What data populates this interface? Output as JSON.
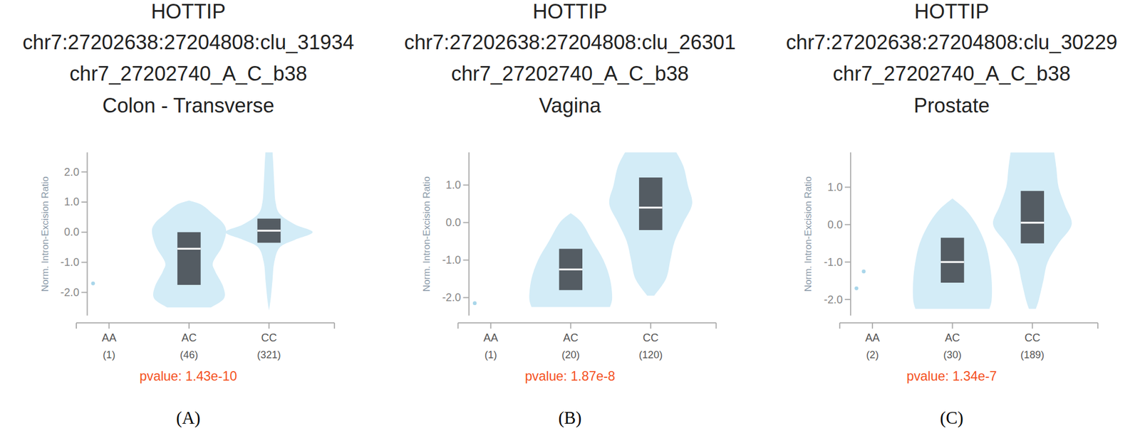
{
  "chart_data": [
    {
      "type": "violin",
      "title_lines": [
        "HOTTIP",
        "chr7:27202638:27204808:clu_31934",
        "chr7_27202740_A_C_b38",
        "Colon - Transverse"
      ],
      "y_label": "Norm. Intron-Excision Ratio",
      "categories": [
        "AA",
        "AC",
        "CC"
      ],
      "count_labels": [
        "(1)",
        "(46)",
        "(321)"
      ],
      "pvalue_label": "pvalue: 1.43e-10",
      "panel_label": "(A)",
      "color": "#d3ecf7",
      "ylim": [
        -2.77,
        2.65
      ],
      "yticks": [
        {
          "value": -2,
          "label": "-2.0"
        },
        {
          "value": -1,
          "label": "-1.0"
        },
        {
          "value": 0,
          "label": "0.0"
        },
        {
          "value": 1,
          "label": "1.0"
        },
        {
          "value": 2,
          "label": "2.0"
        }
      ],
      "groups": [
        {
          "points": [
            -1.7
          ]
        },
        {
          "violin_y": [
            -2.5,
            -2.2,
            -1.8,
            -1.3,
            -1.0,
            -0.5,
            0,
            0.3,
            0.6,
            0.9,
            1.05
          ],
          "violin_density": [
            0.5,
            0.8,
            0.78,
            0.6,
            0.55,
            0.75,
            0.85,
            0.78,
            0.55,
            0.3,
            0
          ],
          "q1": -1.75,
          "median": -0.55,
          "q3": 0.0
        },
        {
          "violin_y": [
            -2.6,
            -2.2,
            -1.6,
            -1.0,
            -0.5,
            -0.25,
            0,
            0.25,
            0.6,
            1.0,
            1.6,
            2.2,
            2.7
          ],
          "violin_density": [
            0,
            0.04,
            0.08,
            0.12,
            0.25,
            0.6,
            1.0,
            0.6,
            0.25,
            0.15,
            0.12,
            0.1,
            0.08
          ],
          "q1": -0.35,
          "median": 0.05,
          "q3": 0.45
        }
      ]
    },
    {
      "type": "violin",
      "title_lines": [
        "HOTTIP",
        "chr7:27202638:27204808:clu_26301",
        "chr7_27202740_A_C_b38",
        "Vagina"
      ],
      "y_label": "Norm. Intron-Excision Ratio",
      "categories": [
        "AA",
        "AC",
        "CC"
      ],
      "count_labels": [
        "(1)",
        "(20)",
        "(120)"
      ],
      "pvalue_label": "pvalue: 1.87e-8",
      "panel_label": "(B)",
      "color": "#d3ecf7",
      "ylim": [
        -2.48,
        1.87
      ],
      "yticks": [
        {
          "value": -2,
          "label": "-2.0"
        },
        {
          "value": -1,
          "label": "-1.0"
        },
        {
          "value": 0,
          "label": "0.0"
        },
        {
          "value": 1,
          "label": "1.0"
        }
      ],
      "groups": [
        {
          "points": [
            -2.15
          ]
        },
        {
          "violin_y": [
            -2.25,
            -2.0,
            -1.5,
            -1.0,
            -0.5,
            0,
            0.25
          ],
          "violin_density": [
            0.9,
            0.95,
            0.9,
            0.75,
            0.5,
            0.25,
            0
          ],
          "q1": -1.8,
          "median": -1.25,
          "q3": -0.7
        },
        {
          "violin_y": [
            -1.95,
            -1.5,
            -1.0,
            -0.5,
            0,
            0.5,
            1.0,
            1.5,
            1.95
          ],
          "violin_density": [
            0.08,
            0.35,
            0.45,
            0.55,
            0.75,
            0.95,
            0.85,
            0.75,
            0.55
          ],
          "q1": -0.2,
          "median": 0.4,
          "q3": 1.2
        }
      ]
    },
    {
      "type": "violin",
      "title_lines": [
        "HOTTIP",
        "chr7:27202638:27204808:clu_30229",
        "chr7_27202740_A_C_b38",
        "Prostate"
      ],
      "y_label": "Norm. Intron-Excision Ratio",
      "categories": [
        "AA",
        "AC",
        "CC"
      ],
      "count_labels": [
        "(2)",
        "(30)",
        "(189)"
      ],
      "pvalue_label": "pvalue: 1.34e-7",
      "panel_label": "(C)",
      "color": "#d3ecf7",
      "ylim": [
        -2.43,
        1.93
      ],
      "yticks": [
        {
          "value": -2,
          "label": "-2.0"
        },
        {
          "value": -1,
          "label": "-1.0"
        },
        {
          "value": 0,
          "label": "0.0"
        },
        {
          "value": 1,
          "label": "1.0"
        }
      ],
      "groups": [
        {
          "points": [
            -1.7,
            -1.25
          ]
        },
        {
          "violin_y": [
            -2.25,
            -2.0,
            -1.5,
            -1.0,
            -0.5,
            0,
            0.4,
            0.7
          ],
          "violin_density": [
            0.85,
            0.9,
            0.9,
            0.85,
            0.75,
            0.55,
            0.3,
            0
          ],
          "q1": -1.55,
          "median": -1.0,
          "q3": -0.35
        },
        {
          "violin_y": [
            -2.25,
            -2.0,
            -1.5,
            -1.0,
            -0.5,
            0,
            0.5,
            1.0,
            1.5,
            1.93
          ],
          "violin_density": [
            0.08,
            0.15,
            0.25,
            0.35,
            0.6,
            0.9,
            0.75,
            0.6,
            0.55,
            0.5
          ],
          "q1": -0.5,
          "median": 0.05,
          "q3": 0.9
        }
      ]
    }
  ]
}
